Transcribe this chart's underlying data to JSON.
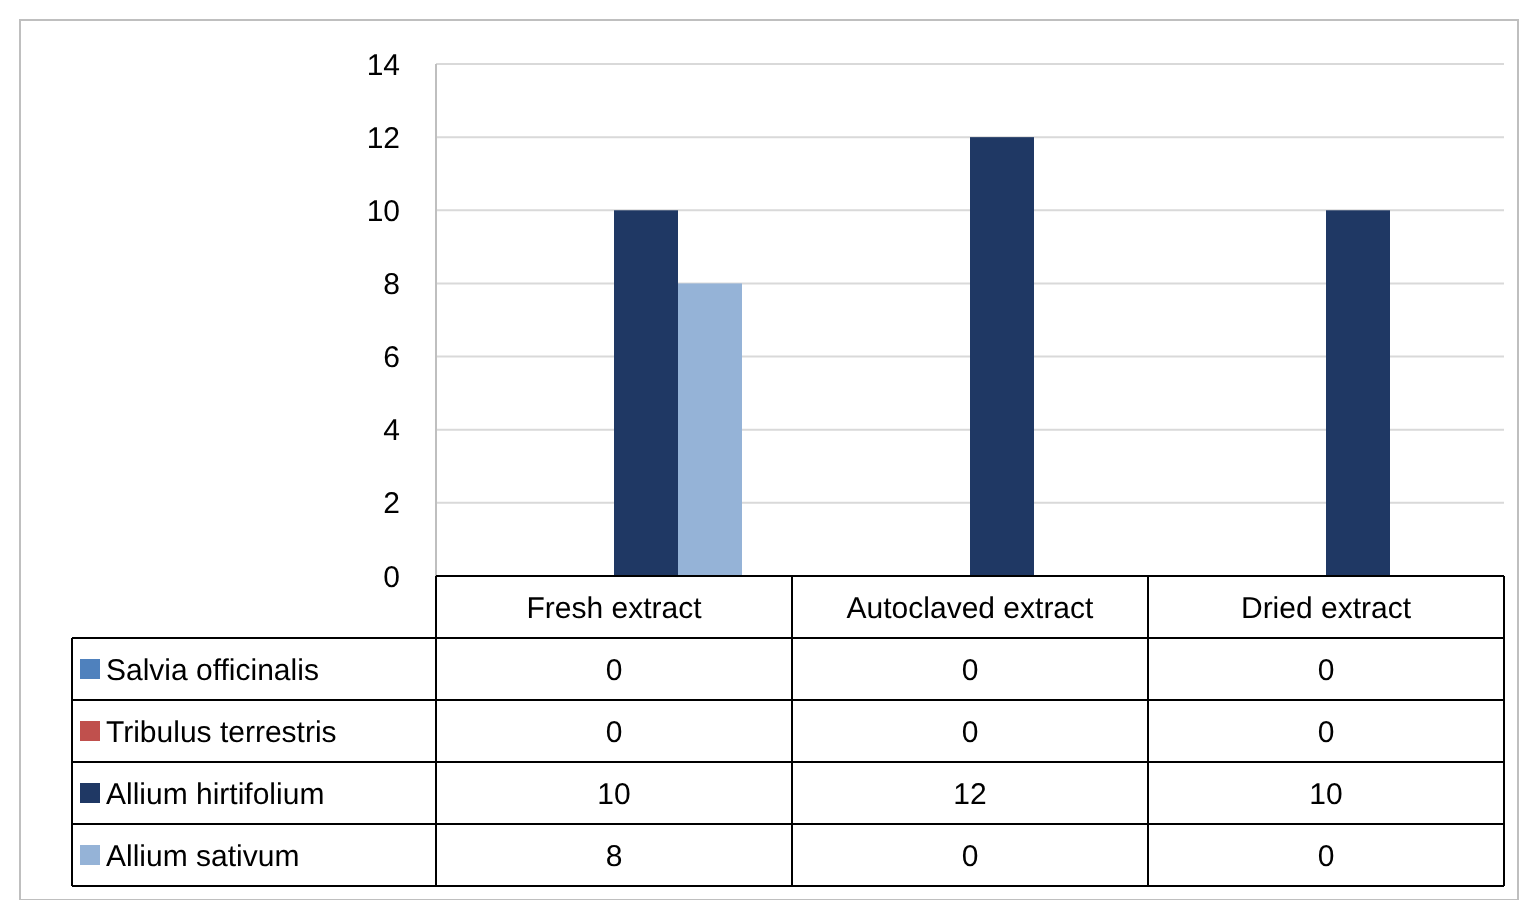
{
  "chart_data": {
    "type": "bar",
    "categories": [
      "Fresh extract",
      "Autoclaved extract",
      "Dried extract"
    ],
    "series": [
      {
        "name": "Salvia officinalis",
        "color": "#4f81bd",
        "values": [
          0,
          0,
          0
        ]
      },
      {
        "name": "Tribulus terrestris",
        "color": "#c0504d",
        "values": [
          0,
          0,
          0
        ]
      },
      {
        "name": "Allium hirtifolium",
        "color": "#1f3864",
        "values": [
          10,
          12,
          10
        ]
      },
      {
        "name": "Allium sativum",
        "color": "#95b3d7",
        "values": [
          8,
          0,
          0
        ]
      }
    ],
    "ylim": [
      0,
      14
    ],
    "yticks": [
      0,
      2,
      4,
      6,
      8,
      10,
      12,
      14
    ],
    "grid": "y",
    "legend": "bottom",
    "data_labels": true
  }
}
